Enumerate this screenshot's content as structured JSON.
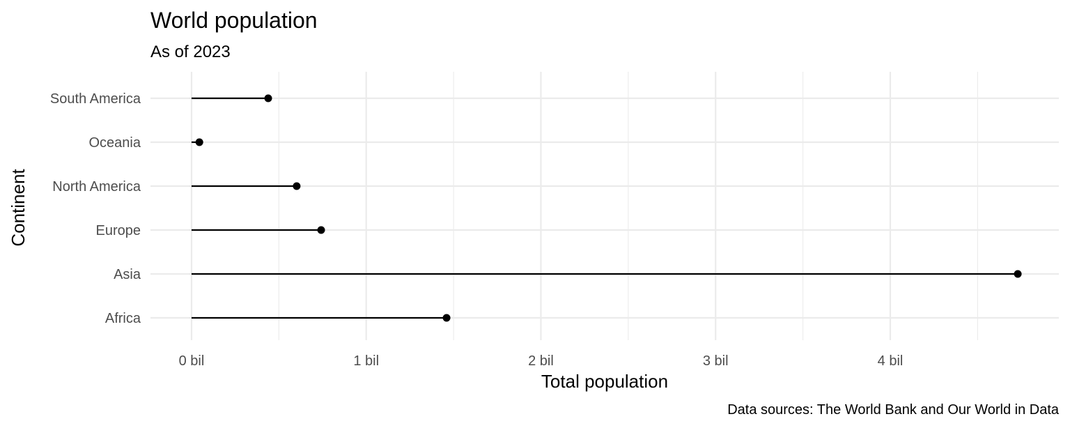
{
  "chart_data": {
    "type": "lollipop",
    "title": "World population",
    "subtitle": "As of 2023",
    "xlabel": "Total population",
    "ylabel": "Continent",
    "caption": "Data sources: The World Bank and Our World in Data",
    "categories": [
      "Africa",
      "Asia",
      "Europe",
      "North America",
      "Oceania",
      "South America"
    ],
    "values": [
      1460000000,
      4730000000,
      742000000,
      602000000,
      45000000,
      439000000
    ],
    "x_ticks": [
      0,
      1000000000,
      2000000000,
      3000000000,
      4000000000
    ],
    "x_tick_labels": [
      "0 bil",
      "1 bil",
      "2 bil",
      "3 bil",
      "4 bil"
    ],
    "xlim": [
      -235000000,
      4965000000
    ],
    "grid": true,
    "legend": "none"
  }
}
